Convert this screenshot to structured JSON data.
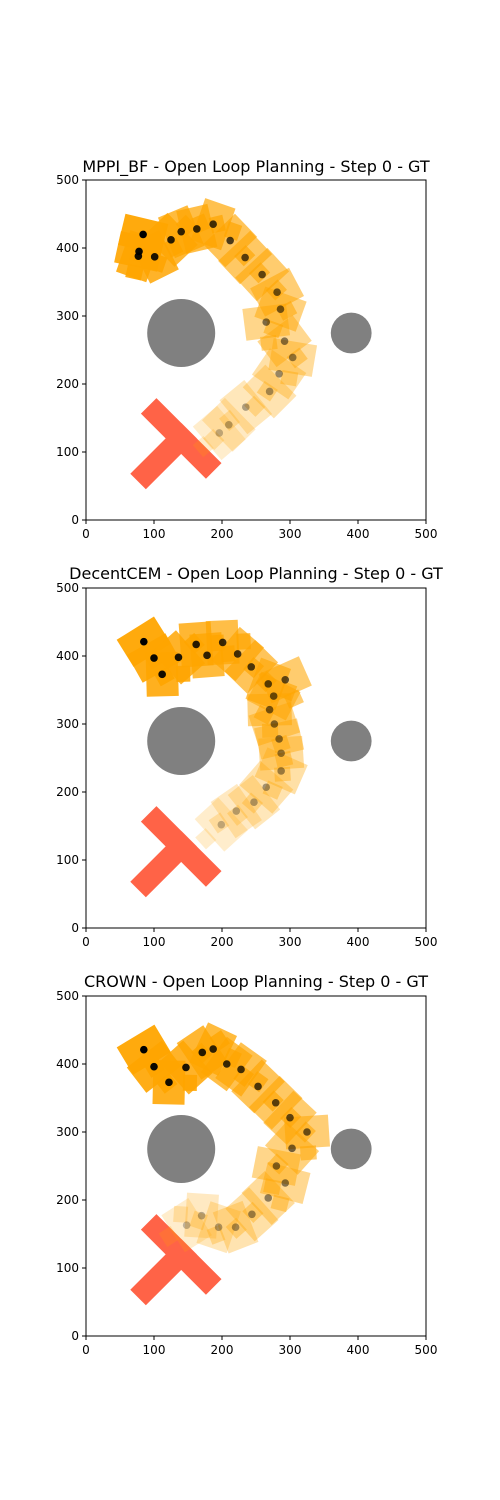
{
  "colors": {
    "obstacle": "#808080",
    "goal": "#ff6347",
    "trajectory": "#ffa500",
    "waypoint": "#000000",
    "axis": "#000000"
  },
  "chart_data": [
    {
      "type": "scatter",
      "title": "MPPI_BF - Open Loop Planning - Step 0 - GT",
      "xlim": [
        0,
        500
      ],
      "ylim": [
        0,
        500
      ],
      "x_ticks": [
        "0",
        "100",
        "200",
        "300",
        "400",
        "500"
      ],
      "y_ticks": [
        "0",
        "100",
        "200",
        "300",
        "400",
        "500"
      ],
      "obstacles": [
        {
          "x": 140,
          "y": 275,
          "r": 50
        },
        {
          "x": 390,
          "y": 275,
          "r": 30
        }
      ],
      "goal_t": {
        "x": 140,
        "y": 120,
        "angle": 45
      },
      "waypoints": [
        [
          84,
          420
        ],
        [
          78,
          395
        ],
        [
          77,
          388
        ],
        [
          101,
          387
        ],
        [
          125,
          412
        ],
        [
          140,
          424
        ],
        [
          163,
          428
        ],
        [
          187,
          435
        ],
        [
          212,
          411
        ],
        [
          234,
          386
        ],
        [
          259,
          361
        ],
        [
          281,
          335
        ],
        [
          286,
          310
        ],
        [
          265,
          291
        ],
        [
          292,
          263
        ],
        [
          304,
          239
        ],
        [
          284,
          215
        ],
        [
          270,
          189
        ],
        [
          235,
          166
        ],
        [
          210,
          140
        ],
        [
          196,
          128
        ]
      ]
    },
    {
      "type": "scatter",
      "title": "DecentCEM - Open Loop Planning - Step 0 - GT",
      "xlim": [
        0,
        500
      ],
      "ylim": [
        0,
        500
      ],
      "x_ticks": [
        "0",
        "100",
        "200",
        "300",
        "400",
        "500"
      ],
      "y_ticks": [
        "0",
        "100",
        "200",
        "300",
        "400",
        "500"
      ],
      "obstacles": [
        {
          "x": 140,
          "y": 275,
          "r": 50
        },
        {
          "x": 390,
          "y": 275,
          "r": 30
        }
      ],
      "goal_t": {
        "x": 140,
        "y": 120,
        "angle": 45
      },
      "waypoints": [
        [
          85,
          421
        ],
        [
          100,
          397
        ],
        [
          112,
          373
        ],
        [
          136,
          398
        ],
        [
          162,
          417
        ],
        [
          178,
          401
        ],
        [
          201,
          420
        ],
        [
          223,
          403
        ],
        [
          243,
          384
        ],
        [
          268,
          359
        ],
        [
          293,
          365
        ],
        [
          276,
          341
        ],
        [
          270,
          321
        ],
        [
          277,
          300
        ],
        [
          284,
          278
        ],
        [
          287,
          257
        ],
        [
          287,
          231
        ],
        [
          265,
          207
        ],
        [
          247,
          185
        ],
        [
          221,
          172
        ],
        [
          199,
          152
        ]
      ]
    },
    {
      "type": "scatter",
      "title": "CROWN - Open Loop Planning - Step 0 - GT",
      "xlim": [
        0,
        500
      ],
      "ylim": [
        0,
        500
      ],
      "x_ticks": [
        "0",
        "100",
        "200",
        "300",
        "400",
        "500"
      ],
      "y_ticks": [
        "0",
        "100",
        "200",
        "300",
        "400",
        "500"
      ],
      "obstacles": [
        {
          "x": 140,
          "y": 275,
          "r": 50
        },
        {
          "x": 390,
          "y": 275,
          "r": 30
        }
      ],
      "goal_t": {
        "x": 140,
        "y": 120,
        "angle": 45
      },
      "waypoints": [
        [
          85,
          421
        ],
        [
          100,
          396
        ],
        [
          122,
          373
        ],
        [
          147,
          395
        ],
        [
          171,
          417
        ],
        [
          187,
          422
        ],
        [
          207,
          400
        ],
        [
          228,
          392
        ],
        [
          253,
          367
        ],
        [
          279,
          343
        ],
        [
          300,
          321
        ],
        [
          325,
          300
        ],
        [
          303,
          276
        ],
        [
          280,
          250
        ],
        [
          293,
          225
        ],
        [
          268,
          203
        ],
        [
          244,
          179
        ],
        [
          220,
          160
        ],
        [
          195,
          160
        ],
        [
          170,
          177
        ],
        [
          148,
          163
        ]
      ]
    }
  ]
}
